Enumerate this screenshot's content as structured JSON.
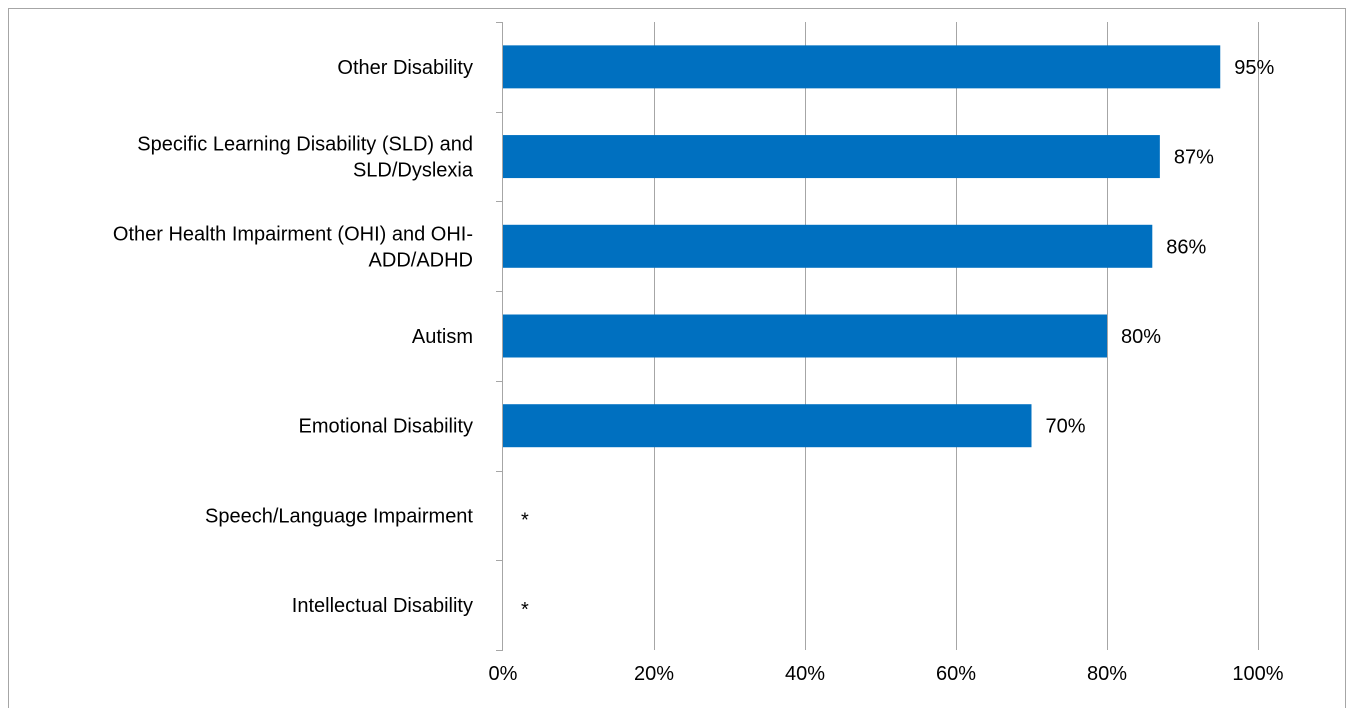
{
  "chart_data": {
    "type": "bar",
    "orientation": "horizontal",
    "categories": [
      [
        "Other Disability"
      ],
      [
        "Specific Learning Disability (SLD) and",
        "SLD/Dyslexia"
      ],
      [
        "Other Health Impairment (OHI) and OHI-",
        "ADD/ADHD"
      ],
      [
        "Autism"
      ],
      [
        "Emotional Disability"
      ],
      [
        "Speech/Language Impairment"
      ],
      [
        "Intellectual Disability"
      ]
    ],
    "values": [
      95,
      87,
      86,
      80,
      70,
      null,
      null
    ],
    "data_labels": [
      "95%",
      "87%",
      "86%",
      "80%",
      "70%",
      "*",
      "*"
    ],
    "x_ticks": [
      "0%",
      "20%",
      "40%",
      "60%",
      "80%",
      "100%"
    ],
    "xlim": [
      0,
      100
    ],
    "bar_color": "#0070C0",
    "grid": true,
    "legend": "none"
  }
}
